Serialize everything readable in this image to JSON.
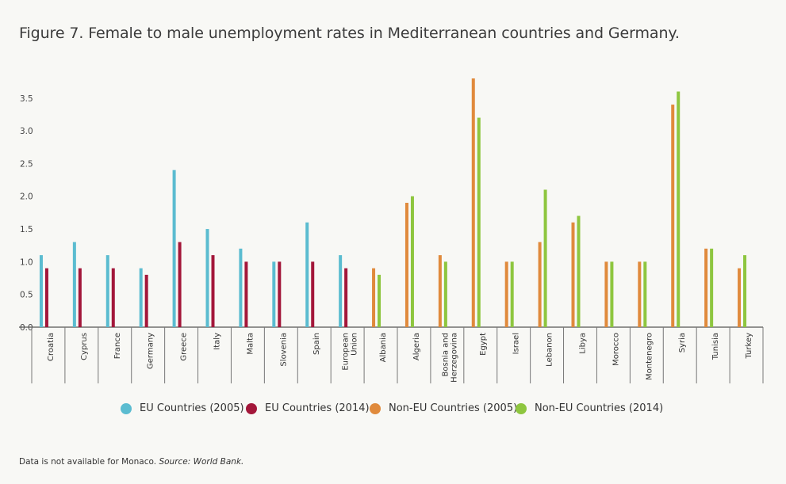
{
  "title": "Figure 7. Female to male unemployment rates in Mediterranean countries and Germany.",
  "footnote": {
    "text": "Data is not available for Monaco.",
    "source": "Source: World Bank."
  },
  "chart_data": {
    "type": "bar",
    "title": "Figure 7. Female to male unemployment rates in Mediterranean countries and Germany.",
    "xlabel": "",
    "ylabel": "",
    "ylim": [
      0,
      3.8
    ],
    "yticks": [
      "0.0",
      "0.5",
      "1.0",
      "1.5",
      "2.0",
      "2.5",
      "3.0",
      "3.5"
    ],
    "grid": false,
    "legend_position": "bottom",
    "categories": [
      {
        "label": "Croatia",
        "group": "EU",
        "v1": 1.1,
        "v2": 0.9
      },
      {
        "label": "Cyprus",
        "group": "EU",
        "v1": 1.3,
        "v2": 0.9
      },
      {
        "label": "France",
        "group": "EU",
        "v1": 1.1,
        "v2": 0.9
      },
      {
        "label": "Germany",
        "group": "EU",
        "v1": 0.9,
        "v2": 0.8
      },
      {
        "label": "Greece",
        "group": "EU",
        "v1": 2.4,
        "v2": 1.3
      },
      {
        "label": "Italy",
        "group": "EU",
        "v1": 1.5,
        "v2": 1.1
      },
      {
        "label": "Malta",
        "group": "EU",
        "v1": 1.2,
        "v2": 1.0
      },
      {
        "label": "Slovenia",
        "group": "EU",
        "v1": 1.0,
        "v2": 1.0
      },
      {
        "label": "Spain",
        "group": "EU",
        "v1": 1.6,
        "v2": 1.0
      },
      {
        "label": "European\nUnion",
        "group": "EU",
        "v1": 1.1,
        "v2": 0.9
      },
      {
        "label": "Albania",
        "group": "NonEU",
        "v1": 0.9,
        "v2": 0.8
      },
      {
        "label": "Algeria",
        "group": "NonEU",
        "v1": 1.9,
        "v2": 2.0
      },
      {
        "label": "Bosnia and\nHerzegovina",
        "group": "NonEU",
        "v1": 1.1,
        "v2": 1.0
      },
      {
        "label": "Egypt",
        "group": "NonEU",
        "v1": 3.8,
        "v2": 3.2
      },
      {
        "label": "Israel",
        "group": "NonEU",
        "v1": 1.0,
        "v2": 1.0
      },
      {
        "label": "Lebanon",
        "group": "NonEU",
        "v1": 1.3,
        "v2": 2.1
      },
      {
        "label": "Libya",
        "group": "NonEU",
        "v1": 1.6,
        "v2": 1.7
      },
      {
        "label": "Morocco",
        "group": "NonEU",
        "v1": 1.0,
        "v2": 1.0
      },
      {
        "label": "Montenegro",
        "group": "NonEU",
        "v1": 1.0,
        "v2": 1.0
      },
      {
        "label": "Syria",
        "group": "NonEU",
        "v1": 3.4,
        "v2": 3.6
      },
      {
        "label": "Tunisia",
        "group": "NonEU",
        "v1": 1.2,
        "v2": 1.2
      },
      {
        "label": "Turkey",
        "group": "NonEU",
        "v1": 0.9,
        "v2": 1.1
      }
    ],
    "series": [
      {
        "name": "EU Countries (2005)",
        "group": "EU",
        "key": "v1",
        "color": "#5bbcd0"
      },
      {
        "name": "EU Countries (2014)",
        "group": "EU",
        "key": "v2",
        "color": "#a3173a"
      },
      {
        "name": "Non-EU Countries (2005)",
        "group": "NonEU",
        "key": "v1",
        "color": "#e08a3c"
      },
      {
        "name": "Non-EU Countries (2014)",
        "group": "NonEU",
        "key": "v2",
        "color": "#8ec63f"
      }
    ]
  }
}
